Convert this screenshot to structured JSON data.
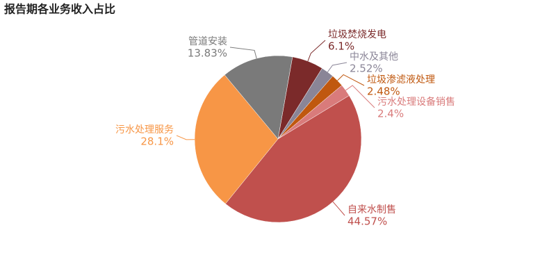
{
  "chart_data": {
    "type": "pie",
    "title": "报告期各业务收入占比",
    "categories": [
      "垃圾焚烧发电",
      "中水及其他",
      "垃圾渗滤液处理",
      "污水处理设备销售",
      "自来水制售",
      "污水处理服务",
      "管道安装"
    ],
    "values": [
      6.1,
      2.52,
      2.48,
      2.4,
      44.57,
      28.1,
      13.83
    ],
    "value_labels": [
      "6.1%",
      "2.52%",
      "2.48%",
      "2.4%",
      "44.57%",
      "28.1%",
      "13.83%"
    ],
    "colors": [
      "#7b2a2a",
      "#8a8597",
      "#c0580f",
      "#d97b7b",
      "#c0504d",
      "#f79646",
      "#7a7a7a"
    ]
  }
}
